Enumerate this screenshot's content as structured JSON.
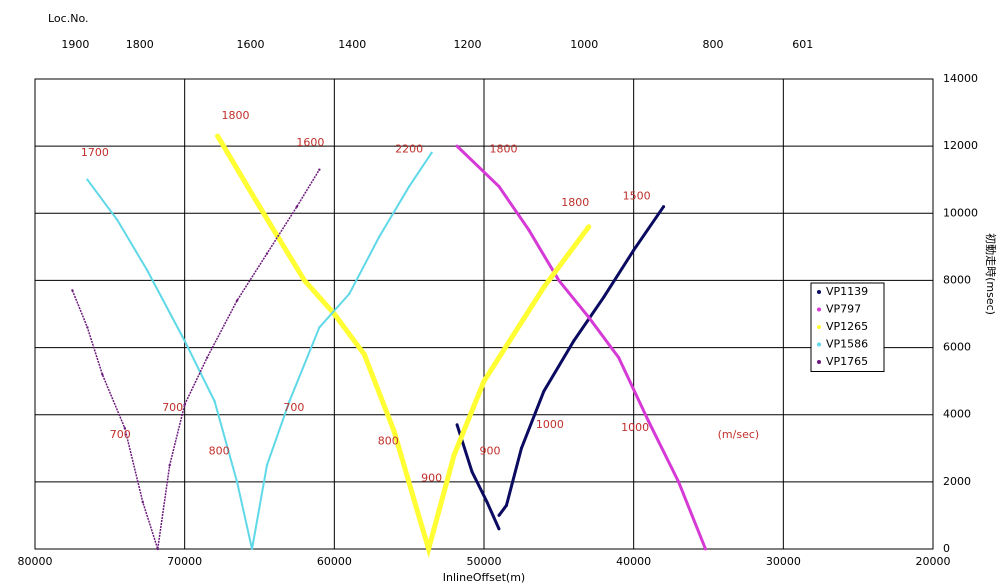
{
  "chart_data": {
    "type": "scatter",
    "x_label": "InlineOffset(m)",
    "y_label": "初動走時(msec)",
    "top_axis_title": "Loc.No.",
    "xlim": [
      80000,
      20000
    ],
    "ylim": [
      0,
      14000
    ],
    "xticks": [
      80000,
      70000,
      60000,
      50000,
      40000,
      30000,
      20000
    ],
    "yticks": [
      0,
      2000,
      4000,
      6000,
      8000,
      10000,
      12000,
      14000
    ],
    "top_ticks": [
      {
        "value": 77300,
        "label": "1900"
      },
      {
        "value": 73000,
        "label": "1800"
      },
      {
        "value": 65600,
        "label": "1600"
      },
      {
        "value": 58800,
        "label": "1400"
      },
      {
        "value": 51100,
        "label": "1200"
      },
      {
        "value": 43300,
        "label": "1000"
      },
      {
        "value": 34700,
        "label": "800"
      },
      {
        "value": 28700,
        "label": "601"
      }
    ],
    "grid": true,
    "legend": "right",
    "series": [
      {
        "name": "VP1139",
        "color": "#0a0a60",
        "width": 3,
        "x": [
          51800,
          50800,
          49800,
          49000,
          null,
          49000,
          48500,
          47500,
          46000,
          44000,
          42000,
          40000,
          38000
        ],
        "values": [
          3700,
          2300,
          1400,
          600,
          null,
          1000,
          1300,
          3000,
          4700,
          6200,
          7500,
          8900,
          10200
        ]
      },
      {
        "name": "VP797",
        "color": "#d63ad6",
        "width": 3,
        "x": [
          51800,
          49000,
          47000,
          45000,
          43000,
          41000,
          39000,
          37000,
          35200
        ],
        "values": [
          12000,
          10800,
          9500,
          8000,
          6900,
          5700,
          3800,
          2000,
          0
        ]
      },
      {
        "name": "VP1265",
        "color": "#ffff33",
        "width": 5,
        "x": [
          67800,
          65000,
          62000,
          60000,
          58000,
          56000,
          54500,
          53700,
          52000,
          50000,
          48000,
          46000,
          44000,
          43000
        ],
        "values": [
          12300,
          10200,
          8000,
          7000,
          5800,
          3500,
          1200,
          0,
          2800,
          5000,
          6400,
          7800,
          9000,
          9600
        ]
      },
      {
        "name": "VP1586",
        "color": "#5fd8e8",
        "width": 2,
        "x": [
          76500,
          74500,
          72500,
          70000,
          68000,
          66500,
          65500,
          64500,
          63000,
          61000,
          59000,
          57000,
          55000,
          53500
        ],
        "values": [
          11000,
          9800,
          8300,
          6200,
          4400,
          2000,
          0,
          2500,
          4400,
          6600,
          7600,
          9300,
          10800,
          11800
        ]
      },
      {
        "name": "VP1765",
        "color": "#6a1a7a",
        "width": 1.5,
        "x": [
          77500,
          76500,
          75500,
          74000,
          72800,
          71800,
          71000,
          70000,
          68500,
          66500,
          64500,
          62500,
          61000
        ],
        "values": [
          7700,
          6600,
          5200,
          3600,
          1400,
          0,
          2500,
          4300,
          5700,
          7400,
          8800,
          10200,
          11300
        ]
      }
    ],
    "annotations": [
      {
        "text": "1700",
        "x": 76000,
        "y": 11800
      },
      {
        "text": "1800",
        "x": 66600,
        "y": 12900
      },
      {
        "text": "1600",
        "x": 61600,
        "y": 12100
      },
      {
        "text": "2200",
        "x": 55000,
        "y": 11900
      },
      {
        "text": "1800",
        "x": 48700,
        "y": 11900
      },
      {
        "text": "1800",
        "x": 43900,
        "y": 10300
      },
      {
        "text": "1500",
        "x": 39800,
        "y": 10500
      },
      {
        "text": "700",
        "x": 70800,
        "y": 4200
      },
      {
        "text": "700",
        "x": 74300,
        "y": 3400
      },
      {
        "text": "700",
        "x": 62700,
        "y": 4200
      },
      {
        "text": "800",
        "x": 67700,
        "y": 2900
      },
      {
        "text": "800",
        "x": 56400,
        "y": 3200
      },
      {
        "text": "900",
        "x": 49600,
        "y": 2900
      },
      {
        "text": "900",
        "x": 53500,
        "y": 2100
      },
      {
        "text": "1000",
        "x": 45600,
        "y": 3700
      },
      {
        "text": "1000",
        "x": 39900,
        "y": 3600
      },
      {
        "text": "(m/sec)",
        "x": 33000,
        "y": 3400
      }
    ]
  }
}
